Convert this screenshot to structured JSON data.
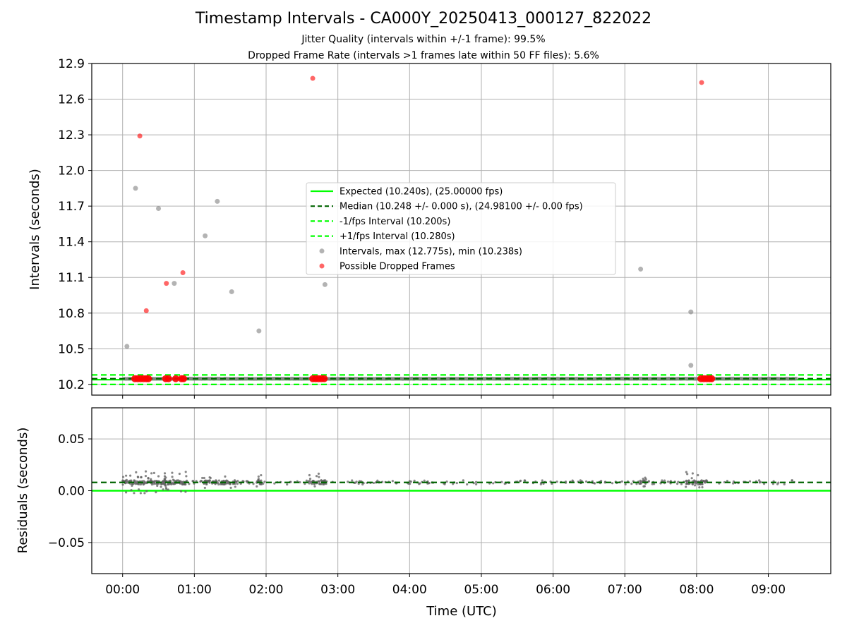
{
  "figure": {
    "title": "Timestamp Intervals - CA000Y_20250413_000127_822022",
    "subtitle_line1": "Jitter Quality (intervals within +/-1 frame): 99.5%",
    "subtitle_line2": "Dropped Frame Rate (intervals >1 frames late within 50 FF files): 5.6%"
  },
  "colors": {
    "expected": "#00ff00",
    "median": "#006400",
    "fps_band": "#00ff00",
    "intervals": "#808080",
    "dropped": "#ff0000",
    "grid": "#b0b0b0"
  },
  "chart_data": [
    {
      "type": "scatter",
      "panel": "intervals",
      "ylabel": "Intervals (seconds)",
      "xlabel": "",
      "xlim_hours": [
        -0.43,
        9.87
      ],
      "ylim": [
        10.11,
        12.9
      ],
      "yticks": [
        "10.2",
        "10.5",
        "10.8",
        "11.1",
        "11.4",
        "11.7",
        "12.0",
        "12.3",
        "12.6",
        "12.9"
      ],
      "ytick_values": [
        10.2,
        10.5,
        10.8,
        11.1,
        11.4,
        11.7,
        12.0,
        12.3,
        12.6,
        12.9
      ],
      "xtick_values_hours": [
        0,
        1,
        2,
        3,
        4,
        5,
        6,
        7,
        8,
        9
      ],
      "grid": true,
      "legend_position": "center",
      "lines": {
        "expected": 10.24,
        "median": 10.248,
        "minus_fps": 10.2,
        "plus_fps": 10.28
      },
      "legend": [
        "Expected (10.240s), (25.00000 fps)",
        "Median (10.248 +/- 0.000 s), (24.98100 +/- 0.00 fps)",
        "-1/fps Interval (10.200s)",
        "+1/fps Interval (10.280s)",
        "Intervals, max (12.775s), min (10.238s)",
        "Possible Dropped Frames"
      ],
      "intervals_outliers": [
        {
          "t": 0.06,
          "y": 10.52
        },
        {
          "t": 0.18,
          "y": 11.85
        },
        {
          "t": 0.5,
          "y": 11.68
        },
        {
          "t": 0.72,
          "y": 11.05
        },
        {
          "t": 1.15,
          "y": 11.45
        },
        {
          "t": 1.32,
          "y": 11.74
        },
        {
          "t": 1.52,
          "y": 10.98
        },
        {
          "t": 1.9,
          "y": 10.65
        },
        {
          "t": 2.82,
          "y": 11.04
        },
        {
          "t": 7.22,
          "y": 11.17
        },
        {
          "t": 7.92,
          "y": 10.81
        },
        {
          "t": 7.92,
          "y": 10.36
        }
      ],
      "intervals_baseline": {
        "t_start": 0.02,
        "t_end": 9.4,
        "y": 10.248
      },
      "dropped_frames": [
        {
          "t": 0.24,
          "y": 12.29
        },
        {
          "t": 0.33,
          "y": 10.82
        },
        {
          "t": 0.61,
          "y": 11.05
        },
        {
          "t": 0.84,
          "y": 11.14
        },
        {
          "t": 2.65,
          "y": 12.775
        },
        {
          "t": 8.07,
          "y": 12.74
        },
        {
          "t": 0.17,
          "y": 10.248
        },
        {
          "t": 0.21,
          "y": 10.248
        },
        {
          "t": 0.25,
          "y": 10.248
        },
        {
          "t": 0.29,
          "y": 10.248
        },
        {
          "t": 0.33,
          "y": 10.248
        },
        {
          "t": 0.36,
          "y": 10.248
        },
        {
          "t": 0.6,
          "y": 10.248
        },
        {
          "t": 0.64,
          "y": 10.248
        },
        {
          "t": 0.74,
          "y": 10.248
        },
        {
          "t": 0.82,
          "y": 10.248
        },
        {
          "t": 0.85,
          "y": 10.248
        },
        {
          "t": 2.65,
          "y": 10.248
        },
        {
          "t": 2.69,
          "y": 10.248
        },
        {
          "t": 2.73,
          "y": 10.248
        },
        {
          "t": 2.77,
          "y": 10.248
        },
        {
          "t": 2.81,
          "y": 10.248
        },
        {
          "t": 8.06,
          "y": 10.248
        },
        {
          "t": 8.1,
          "y": 10.248
        },
        {
          "t": 8.14,
          "y": 10.248
        },
        {
          "t": 8.18,
          "y": 10.248
        },
        {
          "t": 8.21,
          "y": 10.248
        }
      ]
    },
    {
      "type": "scatter",
      "panel": "residuals",
      "ylabel": "Residuals (seconds)",
      "xlabel": "Time (UTC)",
      "xlim_hours": [
        -0.43,
        9.87
      ],
      "ylim": [
        -0.08,
        0.08
      ],
      "yticks": [
        "−0.05",
        "0.00",
        "0.05"
      ],
      "ytick_values": [
        -0.05,
        0.0,
        0.05
      ],
      "xticks": [
        "00:00",
        "01:00",
        "02:00",
        "03:00",
        "04:00",
        "05:00",
        "06:00",
        "07:00",
        "08:00",
        "09:00"
      ],
      "xtick_values_hours": [
        0,
        1,
        2,
        3,
        4,
        5,
        6,
        7,
        8,
        9
      ],
      "grid": true,
      "lines": {
        "zero": 0.0,
        "median_residual": 0.008
      },
      "clusters": [
        {
          "t_start": 0.0,
          "t_end": 0.9,
          "y_min": -0.003,
          "y_max": 0.019,
          "n": 180
        },
        {
          "t_start": 1.1,
          "t_end": 1.6,
          "y_min": 0.002,
          "y_max": 0.015,
          "n": 70
        },
        {
          "t_start": 1.85,
          "t_end": 1.95,
          "y_min": 0.004,
          "y_max": 0.016,
          "n": 20
        },
        {
          "t_start": 2.6,
          "t_end": 2.85,
          "y_min": 0.004,
          "y_max": 0.018,
          "n": 40
        },
        {
          "t_start": 7.18,
          "t_end": 7.3,
          "y_min": 0.004,
          "y_max": 0.013,
          "n": 20
        },
        {
          "t_start": 7.85,
          "t_end": 8.15,
          "y_min": 0.003,
          "y_max": 0.018,
          "n": 50
        },
        {
          "t_start": 0.0,
          "t_end": 9.4,
          "y_min": 0.007,
          "y_max": 0.009,
          "n": 260
        }
      ]
    }
  ]
}
